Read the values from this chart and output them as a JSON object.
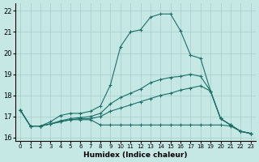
{
  "xlabel": "Humidex (Indice chaleur)",
  "background_color": "#c5e8e5",
  "grid_color": "#aad0cc",
  "line_color": "#1a7068",
  "xlim": [
    -0.5,
    23.5
  ],
  "ylim": [
    15.85,
    22.35
  ],
  "xticks": [
    0,
    1,
    2,
    3,
    4,
    5,
    6,
    7,
    8,
    9,
    10,
    11,
    12,
    13,
    14,
    15,
    16,
    17,
    18,
    19,
    20,
    21,
    22,
    23
  ],
  "yticks": [
    16,
    17,
    18,
    19,
    20,
    21,
    22
  ],
  "line1_y": [
    17.3,
    16.55,
    16.55,
    16.75,
    17.05,
    17.15,
    17.15,
    17.25,
    17.5,
    18.5,
    20.3,
    21.0,
    21.1,
    21.7,
    21.85,
    21.85,
    21.05,
    19.9,
    19.75,
    18.2,
    16.9,
    16.6,
    16.3,
    16.2
  ],
  "line2_y": [
    17.3,
    16.55,
    16.55,
    16.65,
    16.75,
    16.85,
    16.85,
    16.85,
    16.6,
    16.6,
    16.6,
    16.6,
    16.6,
    16.6,
    16.6,
    16.6,
    16.6,
    16.6,
    16.6,
    16.6,
    16.6,
    16.55,
    16.3,
    16.2
  ],
  "line3_y": [
    17.3,
    16.55,
    16.55,
    16.65,
    16.75,
    16.85,
    16.9,
    16.9,
    17.0,
    17.25,
    17.4,
    17.55,
    17.7,
    17.85,
    18.0,
    18.1,
    18.25,
    18.35,
    18.45,
    18.2,
    16.9,
    16.6,
    16.3,
    16.2
  ],
  "line4_y": [
    17.3,
    16.55,
    16.55,
    16.65,
    16.8,
    16.9,
    16.95,
    17.0,
    17.15,
    17.6,
    17.9,
    18.1,
    18.3,
    18.6,
    18.75,
    18.85,
    18.9,
    19.0,
    18.9,
    18.2,
    16.9,
    16.6,
    16.3,
    16.2
  ]
}
